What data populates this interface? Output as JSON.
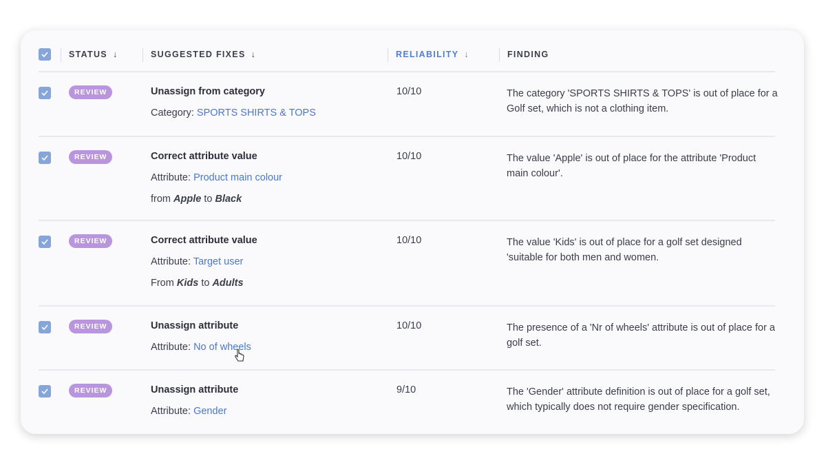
{
  "header": {
    "status": "STATUS",
    "fixes": "SUGGESTED FIXES",
    "reliability": "RELIABILITY",
    "finding": "FINDING",
    "sort_arrow": "↓"
  },
  "colors": {
    "accent": "#4f7ed0",
    "badge": "#b995de",
    "checkbox": "#86a5d9"
  },
  "rows": [
    {
      "status": "REVIEW",
      "title": "Unassign from category",
      "label": "Category:",
      "link": "SPORTS SHIRTS & TOPS",
      "reliability": "10/10",
      "finding": "The category 'SPORTS SHIRTS & TOPS' is out of place for a Golf set, which is not a clothing item."
    },
    {
      "status": "REVIEW",
      "title": "Correct attribute value",
      "label": "Attribute:",
      "link": "Product main colour",
      "from_word": "from",
      "from": "Apple",
      "to_word": "to",
      "to": "Black",
      "reliability": "10/10",
      "finding": "The value 'Apple' is out of place for the attribute 'Product main colour'."
    },
    {
      "status": "REVIEW",
      "title": "Correct attribute value",
      "label": "Attribute:",
      "link": "Target user",
      "from_word": "From",
      "from": "Kids",
      "to_word": "to",
      "to": "Adults",
      "reliability": "10/10",
      "finding": "The value 'Kids' is out of place for a golf set designed 'suitable for both men and women."
    },
    {
      "status": "REVIEW",
      "title": "Unassign attribute",
      "label": "Attribute:",
      "link": "No of wheels",
      "reliability": "10/10",
      "finding": "The presence of a 'Nr of wheels' attribute is out of place for a golf set."
    },
    {
      "status": "REVIEW",
      "title": "Unassign attribute",
      "label": "Attribute:",
      "link": "Gender",
      "reliability": "9/10",
      "finding": "The 'Gender' attribute definition is out of place for a golf set, which typically does not require gender specification."
    }
  ]
}
